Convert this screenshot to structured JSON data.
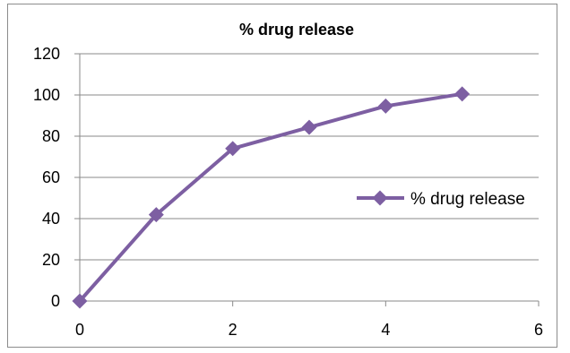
{
  "chart_data": {
    "type": "line",
    "title": "% drug release",
    "xlabel": "",
    "ylabel": "",
    "xlim": [
      0,
      6
    ],
    "ylim": [
      0,
      120
    ],
    "x_ticks": [
      "0",
      "2",
      "4",
      "6"
    ],
    "y_ticks": [
      "0",
      "20",
      "40",
      "60",
      "80",
      "100",
      "120"
    ],
    "grid": "horizontal",
    "legend_position": "right",
    "series": [
      {
        "name": "% drug release",
        "color": "#7d5fa2",
        "marker": "diamond",
        "x": [
          0,
          1,
          2,
          3,
          4,
          5
        ],
        "y": [
          0,
          41.9,
          74.0,
          84.3,
          94.6,
          100.5
        ]
      }
    ]
  }
}
